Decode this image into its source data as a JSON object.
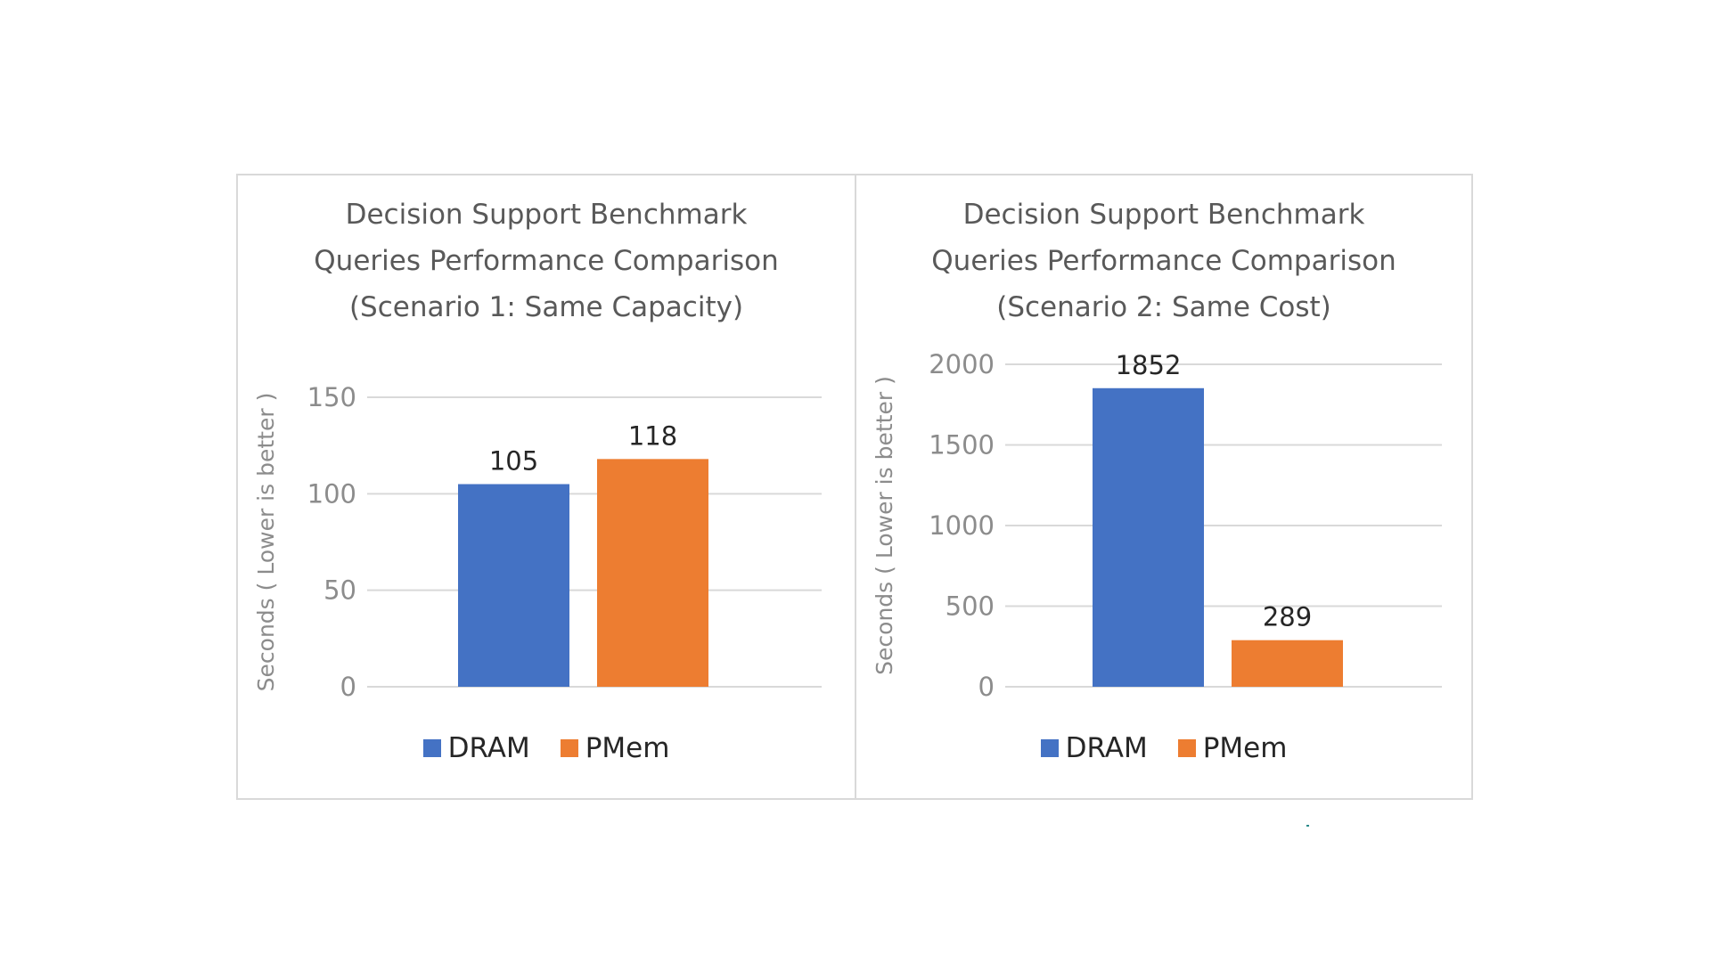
{
  "charts": [
    {
      "title_lines": [
        "Decision Support Benchmark",
        "Queries Performance Comparison",
        "(Scenario 1: Same Capacity)"
      ],
      "legend": [
        "DRAM",
        "PMem"
      ]
    },
    {
      "title_lines": [
        "Decision Support Benchmark",
        "Queries Performance Comparison",
        "(Scenario 2: Same Cost)"
      ],
      "legend": [
        "DRAM",
        "PMem"
      ]
    }
  ],
  "chart_data": [
    {
      "type": "bar",
      "title": "Decision Support Benchmark Queries Performance Comparison (Scenario 1: Same Capacity)",
      "categories": [
        "DRAM",
        "PMem"
      ],
      "values": [
        105,
        118
      ],
      "colors": [
        "#4472c4",
        "#ed7d31"
      ],
      "ylabel": "Seconds ( Lower is better )",
      "xlabel": "",
      "ylim": [
        0,
        150
      ],
      "yticks": [
        0,
        50,
        100,
        150
      ],
      "grid": true,
      "legend": "bottom"
    },
    {
      "type": "bar",
      "title": "Decision Support Benchmark Queries Performance Comparison (Scenario 2: Same Cost)",
      "categories": [
        "DRAM",
        "PMem"
      ],
      "values": [
        1852,
        289
      ],
      "colors": [
        "#4472c4",
        "#ed7d31"
      ],
      "ylabel": "Seconds ( Lower is better )",
      "xlabel": "",
      "ylim": [
        0,
        2000
      ],
      "yticks": [
        0,
        500,
        1000,
        1500,
        2000
      ],
      "grid": true,
      "legend": "bottom"
    }
  ]
}
